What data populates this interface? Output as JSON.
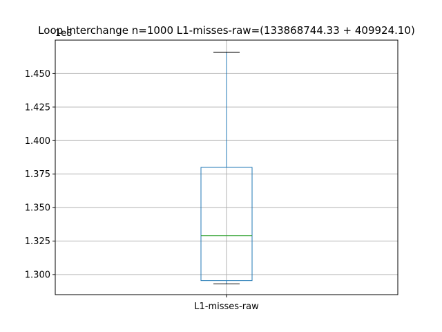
{
  "chart_data": {
    "type": "box",
    "title": "Loop Interchange n=1000  L1-misses-raw=(133868744.33 + 409924.10)",
    "y_offset_label": "1e8",
    "categories": [
      "L1-misses-raw"
    ],
    "box": {
      "whisker_low": 1.293,
      "q1": 1.2955,
      "median": 1.329,
      "q3": 1.38,
      "whisker_high": 1.466
    },
    "ylim": [
      1.285,
      1.475
    ],
    "yticks": [
      1.3,
      1.325,
      1.35,
      1.375,
      1.4,
      1.425,
      1.45
    ],
    "ytick_labels": [
      "1.300",
      "1.325",
      "1.350",
      "1.375",
      "1.400",
      "1.425",
      "1.450"
    ],
    "grid": true,
    "colors": {
      "box": "#1f77b4",
      "median": "#2ca02c",
      "whisker_cap": "#000000",
      "grid": "#b0b0b0"
    }
  }
}
